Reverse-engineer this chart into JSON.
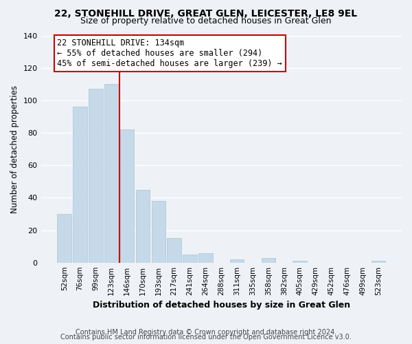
{
  "title1": "22, STONEHILL DRIVE, GREAT GLEN, LEICESTER, LE8 9EL",
  "title2": "Size of property relative to detached houses in Great Glen",
  "xlabel": "Distribution of detached houses by size in Great Glen",
  "ylabel": "Number of detached properties",
  "bin_labels": [
    "52sqm",
    "76sqm",
    "99sqm",
    "123sqm",
    "146sqm",
    "170sqm",
    "193sqm",
    "217sqm",
    "241sqm",
    "264sqm",
    "288sqm",
    "311sqm",
    "335sqm",
    "358sqm",
    "382sqm",
    "405sqm",
    "429sqm",
    "452sqm",
    "476sqm",
    "499sqm",
    "523sqm"
  ],
  "bar_values": [
    30,
    96,
    107,
    110,
    82,
    45,
    38,
    15,
    5,
    6,
    0,
    2,
    0,
    3,
    0,
    1,
    0,
    0,
    0,
    0,
    1
  ],
  "bar_color": "#c5d9e8",
  "bar_edge_color": "#a8c4d8",
  "vline_x": 3.5,
  "vline_color": "#cc0000",
  "annotation_title": "22 STONEHILL DRIVE: 134sqm",
  "annotation_line1": "← 55% of detached houses are smaller (294)",
  "annotation_line2": "45% of semi-detached houses are larger (239) →",
  "annotation_box_facecolor": "#ffffff",
  "annotation_box_edgecolor": "#cc0000",
  "ylim": [
    0,
    140
  ],
  "yticks": [
    0,
    20,
    40,
    60,
    80,
    100,
    120,
    140
  ],
  "footnote1": "Contains HM Land Registry data © Crown copyright and database right 2024.",
  "footnote2": "Contains public sector information licensed under the Open Government Licence v3.0.",
  "bg_color": "#eef2f7",
  "plot_bg_color": "#eef2f7",
  "grid_color": "#ffffff",
  "title_fontsize": 10,
  "subtitle_fontsize": 9,
  "ylabel_fontsize": 8.5,
  "xlabel_fontsize": 9,
  "tick_fontsize": 8,
  "xtick_fontsize": 7.5,
  "footnote_fontsize": 7,
  "annot_fontsize": 8.5
}
